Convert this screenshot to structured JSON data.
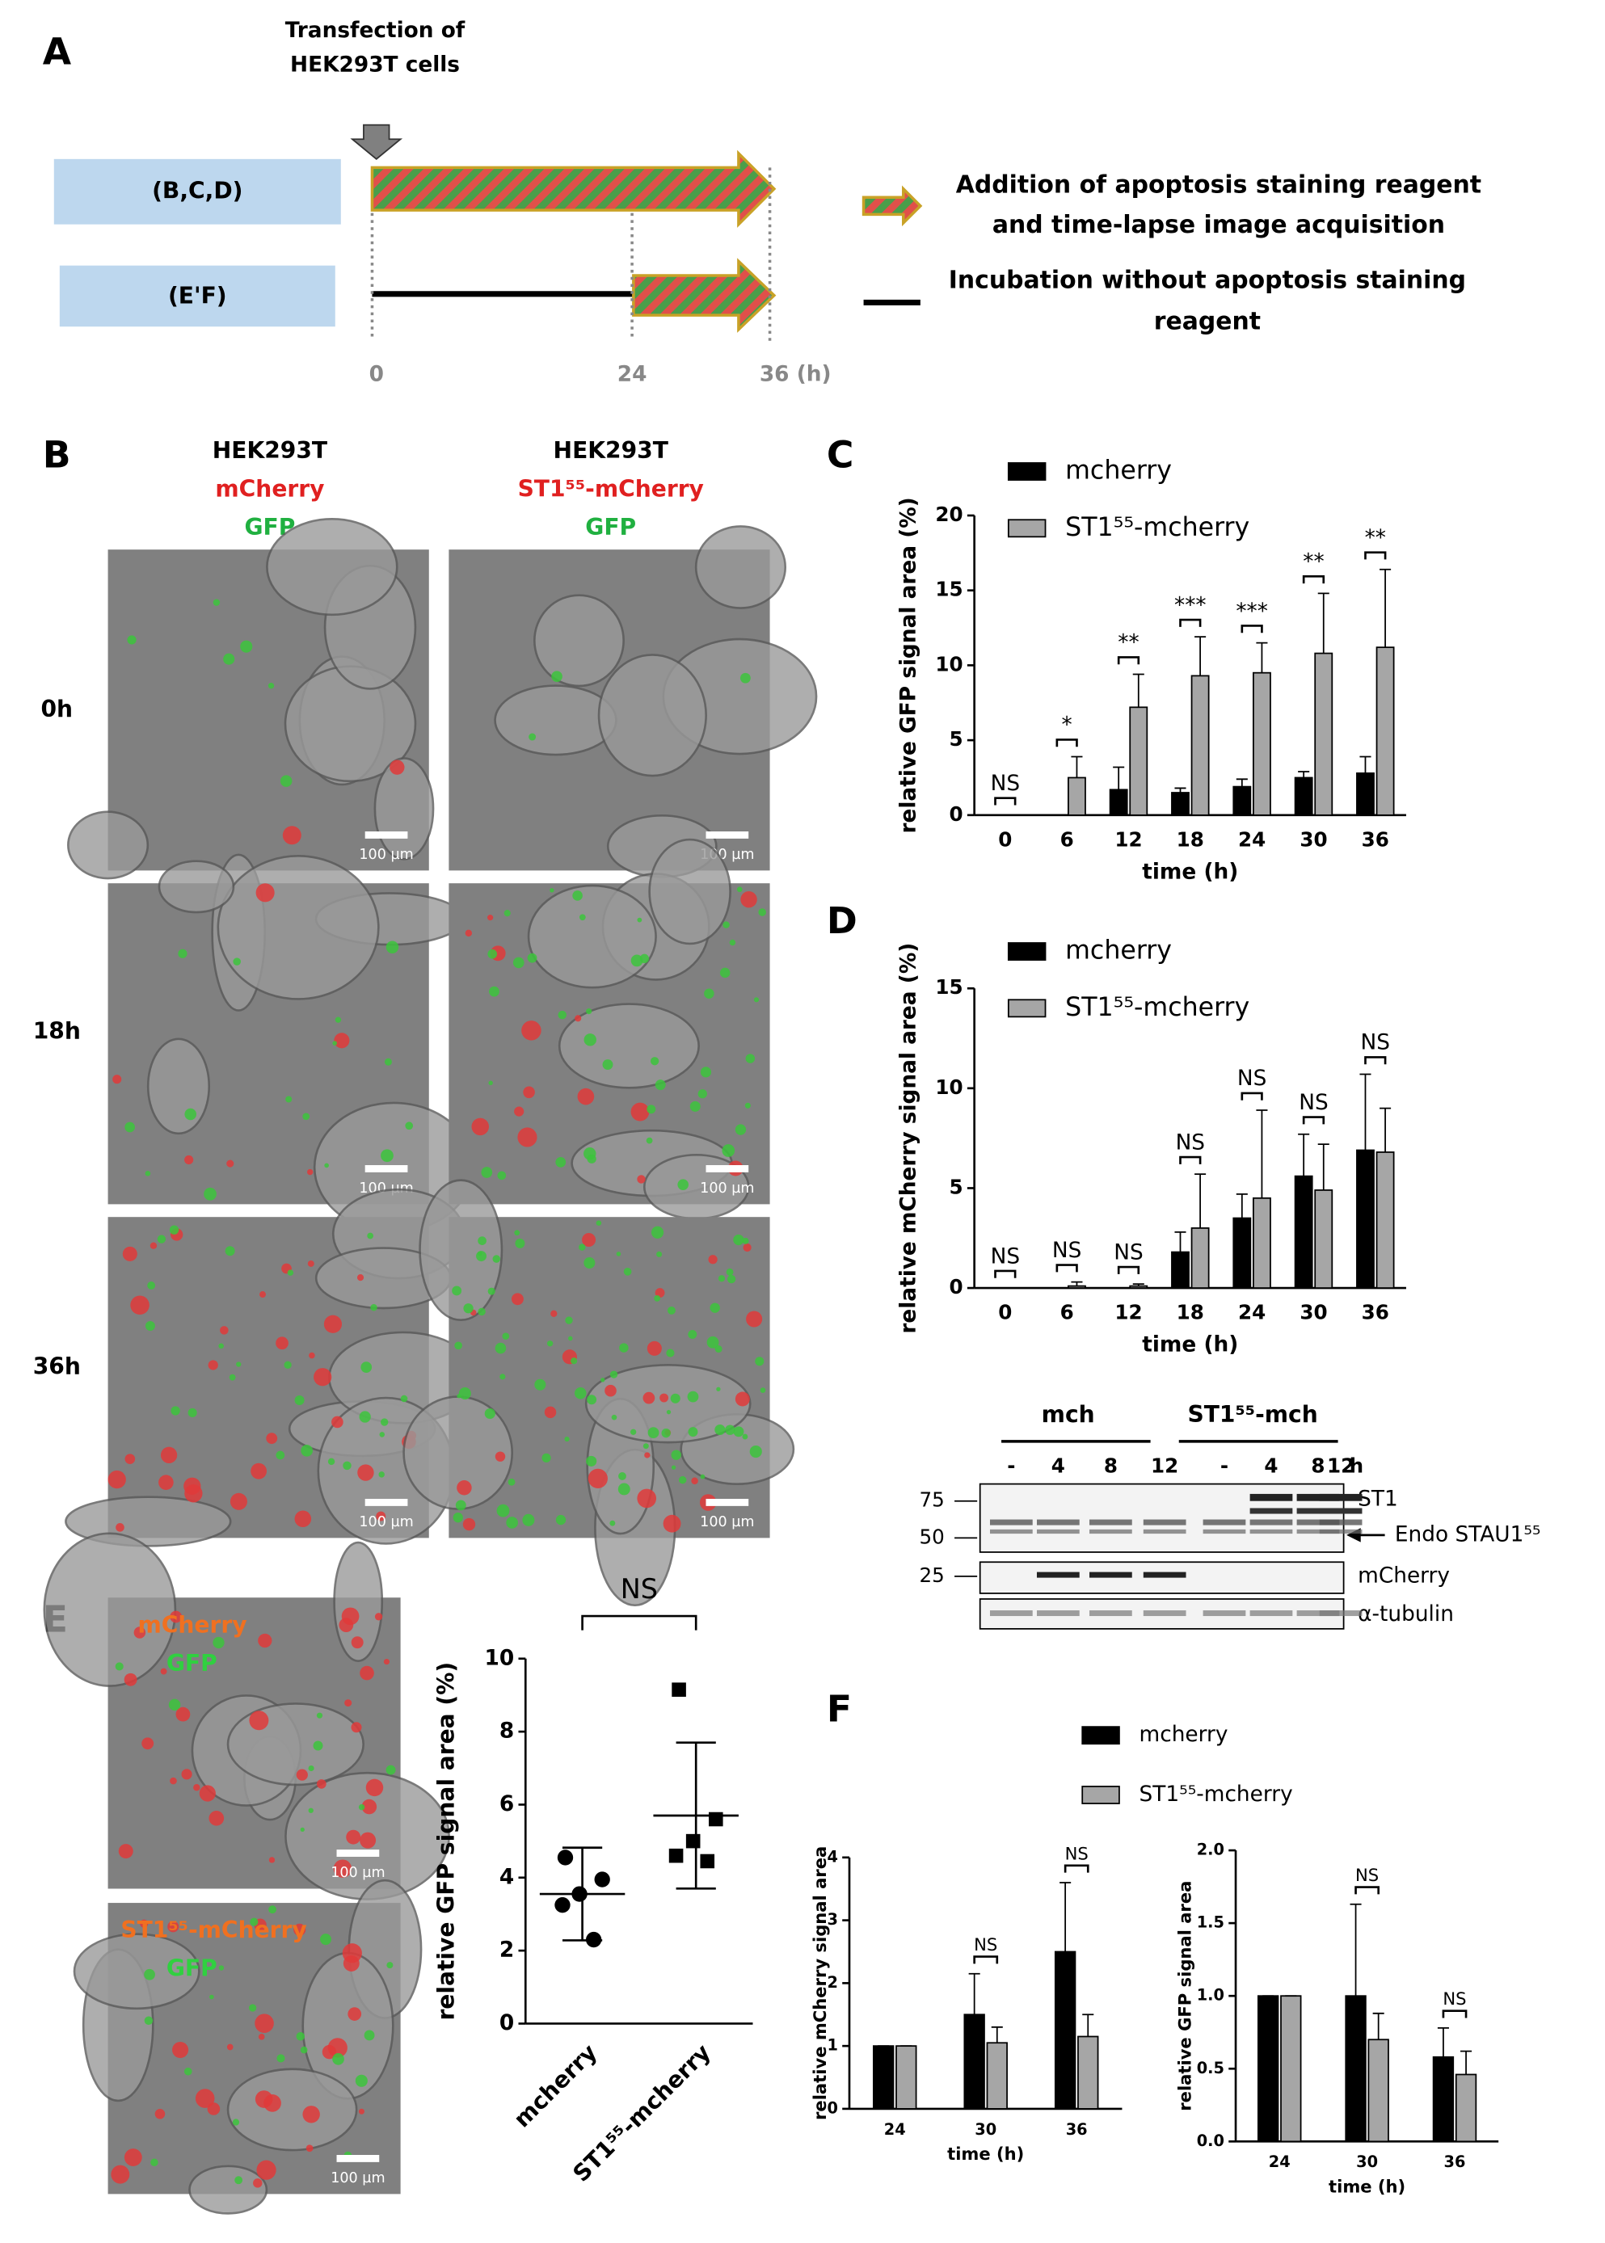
{
  "panel_a": {
    "label": "A",
    "transfection": [
      "Transfection of",
      "HEK293T cells"
    ],
    "groups": [
      "(B,C,D)",
      "(E'F)"
    ],
    "time_ticks": [
      "0",
      "24",
      "36 (h)"
    ],
    "legend": [
      [
        "Addition of apoptosis staining reagent",
        "and time-lapse image acquisition"
      ],
      [
        "Incubation without apoptosis staining",
        "reagent"
      ]
    ]
  },
  "panel_b": {
    "label": "B",
    "columns": [
      [
        "HEK293T",
        "mCherry",
        "GFP"
      ],
      [
        "HEK293T",
        "ST1⁵⁵-mCherry",
        "GFP"
      ]
    ],
    "rows": [
      "0h",
      "18h",
      "36h"
    ],
    "scale_bar": "100 µm"
  },
  "blot": {
    "groups": [
      "mch",
      "ST1⁵⁵-mch"
    ],
    "lanes": [
      "-",
      "4",
      "8",
      "12",
      "-",
      "4",
      "8",
      "12"
    ],
    "unit": "h",
    "markers": [
      "75",
      "50",
      "25"
    ],
    "bands": [
      "ST1",
      "Endo STAU1⁵⁵",
      "mCherry",
      "α-tubulin"
    ]
  },
  "panel_e": {
    "label": "E",
    "images": [
      [
        "mCherry",
        "GFP"
      ],
      [
        "ST1⁵⁵-mCherry",
        "GFP"
      ]
    ],
    "scale_bar": "100 µm"
  },
  "chart_data": [
    {
      "type": "bar",
      "label": "C",
      "ylabel": "relative GFP signal area (%)",
      "xlabel": "time (h)",
      "categories": [
        "0",
        "6",
        "12",
        "18",
        "24",
        "30",
        "36"
      ],
      "series": [
        {
          "name": "mcherry",
          "color": "#000000",
          "values": [
            0,
            0,
            1.7,
            1.5,
            1.9,
            2.5,
            2.8
          ],
          "errors": [
            0,
            0,
            1.5,
            0.3,
            0.5,
            0.4,
            1.1
          ]
        },
        {
          "name": "ST1⁵⁵-mcherry",
          "color": "#a6a6a6",
          "values": [
            0,
            2.5,
            7.2,
            9.3,
            9.5,
            10.8,
            11.2
          ],
          "errors": [
            0,
            1.4,
            2.2,
            2.6,
            2.0,
            4.0,
            5.2
          ]
        }
      ],
      "significance": [
        "NS",
        "*",
        "**",
        "***",
        "***",
        "**",
        "**"
      ],
      "ylim": [
        0,
        20
      ],
      "yticks": [
        0,
        5,
        10,
        15,
        20
      ]
    },
    {
      "type": "bar",
      "label": "D",
      "ylabel": "relative mCherry signal area (%)",
      "xlabel": "time (h)",
      "categories": [
        "0",
        "6",
        "12",
        "18",
        "24",
        "30",
        "36"
      ],
      "series": [
        {
          "name": "mcherry",
          "color": "#000000",
          "values": [
            0,
            0,
            0,
            1.8,
            3.5,
            5.6,
            6.9
          ],
          "errors": [
            0,
            0,
            0,
            1.0,
            1.2,
            2.1,
            3.8
          ]
        },
        {
          "name": "ST1⁵⁵-mcherry",
          "color": "#a6a6a6",
          "values": [
            0,
            0.1,
            0.1,
            3.0,
            4.5,
            4.9,
            6.8
          ],
          "errors": [
            0,
            0.2,
            0.1,
            2.7,
            4.4,
            2.3,
            2.2
          ]
        }
      ],
      "significance": [
        "NS",
        "NS",
        "NS",
        "NS",
        "NS",
        "NS",
        "NS"
      ],
      "ylim": [
        0,
        15
      ],
      "yticks": [
        0,
        5,
        10,
        15
      ]
    },
    {
      "type": "scatter",
      "ylabel": "relative GFP signal area (%)",
      "categories": [
        "mcherry",
        "ST1⁵⁵-mcherry"
      ],
      "series": [
        {
          "marker": "circle",
          "color": "#000000",
          "values": [
            4.55,
            3.95,
            3.55,
            3.25,
            2.3
          ],
          "mean": 3.55,
          "sd": 1.27
        },
        {
          "marker": "square",
          "color": "#000000",
          "values": [
            9.15,
            5.6,
            5.0,
            4.6,
            4.45
          ],
          "mean": 5.7,
          "sd": 2.0
        }
      ],
      "significance": [
        "NS"
      ],
      "ylim": [
        0,
        10
      ],
      "yticks": [
        0,
        2,
        4,
        6,
        8,
        10
      ]
    },
    {
      "type": "bar",
      "label": "F",
      "ylabel": "relative mCherry signal area",
      "xlabel": "time (h)",
      "categories": [
        "24",
        "30",
        "36"
      ],
      "series": [
        {
          "name": "mcherry",
          "color": "#000000",
          "values": [
            1,
            1.5,
            2.5
          ],
          "errors": [
            0,
            0.65,
            1.1
          ]
        },
        {
          "name": "ST1⁵⁵-mcherry",
          "color": "#a6a6a6",
          "values": [
            1,
            1.05,
            1.15
          ],
          "errors": [
            0,
            0.25,
            0.35
          ]
        }
      ],
      "significance": [
        null,
        "NS",
        "NS"
      ],
      "ylim": [
        0,
        4
      ],
      "yticks": [
        0,
        1,
        2,
        3,
        4
      ]
    },
    {
      "type": "bar",
      "ylabel": "relative GFP signal area",
      "xlabel": "time (h)",
      "categories": [
        "24",
        "30",
        "36"
      ],
      "series": [
        {
          "color": "#000000",
          "values": [
            1,
            1,
            0.58
          ],
          "errors": [
            0,
            0.63,
            0.2
          ]
        },
        {
          "color": "#a6a6a6",
          "values": [
            1,
            0.7,
            0.46
          ],
          "errors": [
            0,
            0.18,
            0.16
          ]
        }
      ],
      "significance": [
        null,
        "NS",
        "NS"
      ],
      "ylim": [
        0,
        2
      ],
      "yticks": [
        {
          "value": 0,
          "label": "0.0"
        },
        {
          "value": 0.5,
          "label": "0.5"
        },
        {
          "value": 1,
          "label": "1.0"
        },
        {
          "value": 1.5,
          "label": "1.5"
        },
        {
          "value": 2,
          "label": "2.0"
        }
      ]
    }
  ]
}
